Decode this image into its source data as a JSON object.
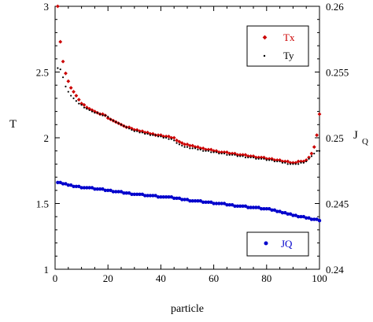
{
  "chart_data": {
    "type": "scatter",
    "xlabel": "particle",
    "ylabel_left": "T",
    "ylabel_right": "J",
    "ylabel_right_subscript": "Q",
    "xlim": [
      0,
      100
    ],
    "ylim_left": [
      1,
      3
    ],
    "ylim_right": [
      0.24,
      0.26
    ],
    "grid": false,
    "x_ticks": [
      "0",
      "20",
      "40",
      "60",
      "80",
      "100"
    ],
    "y_left_ticks": [
      "1",
      "1.5",
      "2",
      "2.5",
      "3"
    ],
    "y_right_ticks": [
      "0.24",
      "0.245",
      "0.25",
      "0.255",
      "0.26"
    ],
    "legends": [
      {
        "placement": "top-right",
        "entries": [
          {
            "name": "Tx",
            "color": "#cc0000"
          },
          {
            "name": "Ty",
            "color": "#000000"
          }
        ]
      },
      {
        "placement": "bottom-right",
        "entries": [
          {
            "name": "JQ",
            "color": "#0000cc"
          }
        ]
      }
    ],
    "series": [
      {
        "name": "Tx",
        "axis": "left",
        "color": "#cc0000",
        "marker": "diamond",
        "x": [
          1,
          2,
          3,
          4,
          5,
          6,
          7,
          8,
          9,
          10,
          11,
          12,
          13,
          14,
          15,
          16,
          17,
          18,
          19,
          20,
          21,
          22,
          23,
          24,
          25,
          26,
          27,
          28,
          29,
          30,
          31,
          32,
          33,
          34,
          35,
          36,
          37,
          38,
          39,
          40,
          41,
          42,
          43,
          44,
          45,
          46,
          47,
          48,
          49,
          50,
          51,
          52,
          53,
          54,
          55,
          56,
          57,
          58,
          59,
          60,
          61,
          62,
          63,
          64,
          65,
          66,
          67,
          68,
          69,
          70,
          71,
          72,
          73,
          74,
          75,
          76,
          77,
          78,
          79,
          80,
          81,
          82,
          83,
          84,
          85,
          86,
          87,
          88,
          89,
          90,
          91,
          92,
          93,
          94,
          95,
          96,
          97,
          98,
          99,
          100
        ],
        "values": [
          3.0,
          2.73,
          2.58,
          2.49,
          2.43,
          2.38,
          2.35,
          2.32,
          2.29,
          2.26,
          2.25,
          2.23,
          2.22,
          2.21,
          2.2,
          2.19,
          2.18,
          2.18,
          2.17,
          2.15,
          2.14,
          2.13,
          2.12,
          2.11,
          2.1,
          2.09,
          2.08,
          2.08,
          2.07,
          2.06,
          2.06,
          2.05,
          2.05,
          2.04,
          2.04,
          2.03,
          2.03,
          2.02,
          2.02,
          2.02,
          2.01,
          2.01,
          2.01,
          2.0,
          2.0,
          1.98,
          1.97,
          1.96,
          1.95,
          1.95,
          1.94,
          1.94,
          1.93,
          1.93,
          1.92,
          1.92,
          1.91,
          1.91,
          1.91,
          1.9,
          1.9,
          1.89,
          1.89,
          1.89,
          1.89,
          1.88,
          1.88,
          1.88,
          1.87,
          1.87,
          1.87,
          1.87,
          1.86,
          1.86,
          1.86,
          1.85,
          1.85,
          1.85,
          1.85,
          1.84,
          1.84,
          1.84,
          1.83,
          1.83,
          1.83,
          1.82,
          1.82,
          1.82,
          1.81,
          1.81,
          1.81,
          1.82,
          1.82,
          1.82,
          1.83,
          1.85,
          1.88,
          1.93,
          2.02,
          2.18
        ]
      },
      {
        "name": "Ty",
        "axis": "left",
        "color": "#000000",
        "marker": "dot",
        "x": [
          1,
          2,
          3,
          4,
          5,
          6,
          7,
          8,
          9,
          10,
          11,
          12,
          13,
          14,
          15,
          16,
          17,
          18,
          19,
          20,
          21,
          22,
          23,
          24,
          25,
          26,
          27,
          28,
          29,
          30,
          31,
          32,
          33,
          34,
          35,
          36,
          37,
          38,
          39,
          40,
          41,
          42,
          43,
          44,
          45,
          46,
          47,
          48,
          49,
          50,
          51,
          52,
          53,
          54,
          55,
          56,
          57,
          58,
          59,
          60,
          61,
          62,
          63,
          64,
          65,
          66,
          67,
          68,
          69,
          70,
          71,
          72,
          73,
          74,
          75,
          76,
          77,
          78,
          79,
          80,
          81,
          82,
          83,
          84,
          85,
          86,
          87,
          88,
          89,
          90,
          91,
          92,
          93,
          94,
          95,
          96,
          97,
          98,
          99,
          100
        ],
        "values": [
          2.53,
          2.52,
          2.46,
          2.39,
          2.35,
          2.32,
          2.3,
          2.28,
          2.26,
          2.25,
          2.23,
          2.22,
          2.21,
          2.2,
          2.19,
          2.19,
          2.18,
          2.17,
          2.17,
          2.16,
          2.14,
          2.13,
          2.12,
          2.11,
          2.1,
          2.09,
          2.08,
          2.07,
          2.06,
          2.05,
          2.05,
          2.04,
          2.04,
          2.03,
          2.03,
          2.02,
          2.02,
          2.02,
          2.01,
          2.01,
          2.0,
          2.0,
          1.99,
          1.99,
          1.98,
          1.96,
          1.95,
          1.94,
          1.93,
          1.93,
          1.92,
          1.92,
          1.92,
          1.91,
          1.91,
          1.9,
          1.9,
          1.9,
          1.89,
          1.89,
          1.89,
          1.88,
          1.88,
          1.88,
          1.87,
          1.87,
          1.87,
          1.87,
          1.86,
          1.86,
          1.86,
          1.85,
          1.85,
          1.85,
          1.85,
          1.84,
          1.84,
          1.84,
          1.84,
          1.83,
          1.83,
          1.83,
          1.82,
          1.82,
          1.82,
          1.81,
          1.81,
          1.8,
          1.8,
          1.8,
          1.8,
          1.8,
          1.81,
          1.81,
          1.82,
          1.84,
          1.86,
          1.88,
          1.9,
          1.9
        ]
      },
      {
        "name": "JQ",
        "axis": "right",
        "color": "#0000cc",
        "marker": "circle",
        "x": [
          1,
          2,
          3,
          4,
          5,
          6,
          7,
          8,
          9,
          10,
          11,
          12,
          13,
          14,
          15,
          16,
          17,
          18,
          19,
          20,
          21,
          22,
          23,
          24,
          25,
          26,
          27,
          28,
          29,
          30,
          31,
          32,
          33,
          34,
          35,
          36,
          37,
          38,
          39,
          40,
          41,
          42,
          43,
          44,
          45,
          46,
          47,
          48,
          49,
          50,
          51,
          52,
          53,
          54,
          55,
          56,
          57,
          58,
          59,
          60,
          61,
          62,
          63,
          64,
          65,
          66,
          67,
          68,
          69,
          70,
          71,
          72,
          73,
          74,
          75,
          76,
          77,
          78,
          79,
          80,
          81,
          82,
          83,
          84,
          85,
          86,
          87,
          88,
          89,
          90,
          91,
          92,
          93,
          94,
          95,
          96,
          97,
          98,
          99,
          100
        ],
        "values": [
          0.2466,
          0.2466,
          0.2465,
          0.2465,
          0.2464,
          0.2464,
          0.2463,
          0.2463,
          0.2463,
          0.2462,
          0.2462,
          0.2462,
          0.2462,
          0.2462,
          0.2461,
          0.2461,
          0.2461,
          0.2461,
          0.246,
          0.246,
          0.246,
          0.2459,
          0.2459,
          0.2459,
          0.2459,
          0.2458,
          0.2458,
          0.2458,
          0.2457,
          0.2457,
          0.2457,
          0.2457,
          0.2457,
          0.2456,
          0.2456,
          0.2456,
          0.2456,
          0.2456,
          0.2455,
          0.2455,
          0.2455,
          0.2455,
          0.2455,
          0.2455,
          0.2454,
          0.2454,
          0.2454,
          0.2453,
          0.2453,
          0.2453,
          0.2452,
          0.2452,
          0.2452,
          0.2452,
          0.2452,
          0.2451,
          0.2451,
          0.2451,
          0.2451,
          0.245,
          0.245,
          0.245,
          0.245,
          0.245,
          0.2449,
          0.2449,
          0.2449,
          0.2448,
          0.2448,
          0.2448,
          0.2448,
          0.2448,
          0.2447,
          0.2447,
          0.2447,
          0.2447,
          0.2447,
          0.2446,
          0.2446,
          0.2446,
          0.2446,
          0.2445,
          0.2445,
          0.2444,
          0.2444,
          0.2443,
          0.2443,
          0.2442,
          0.2442,
          0.2441,
          0.2441,
          0.244,
          0.244,
          0.244,
          0.2439,
          0.2439,
          0.2438,
          0.2438,
          0.2438,
          0.2437
        ]
      }
    ]
  }
}
